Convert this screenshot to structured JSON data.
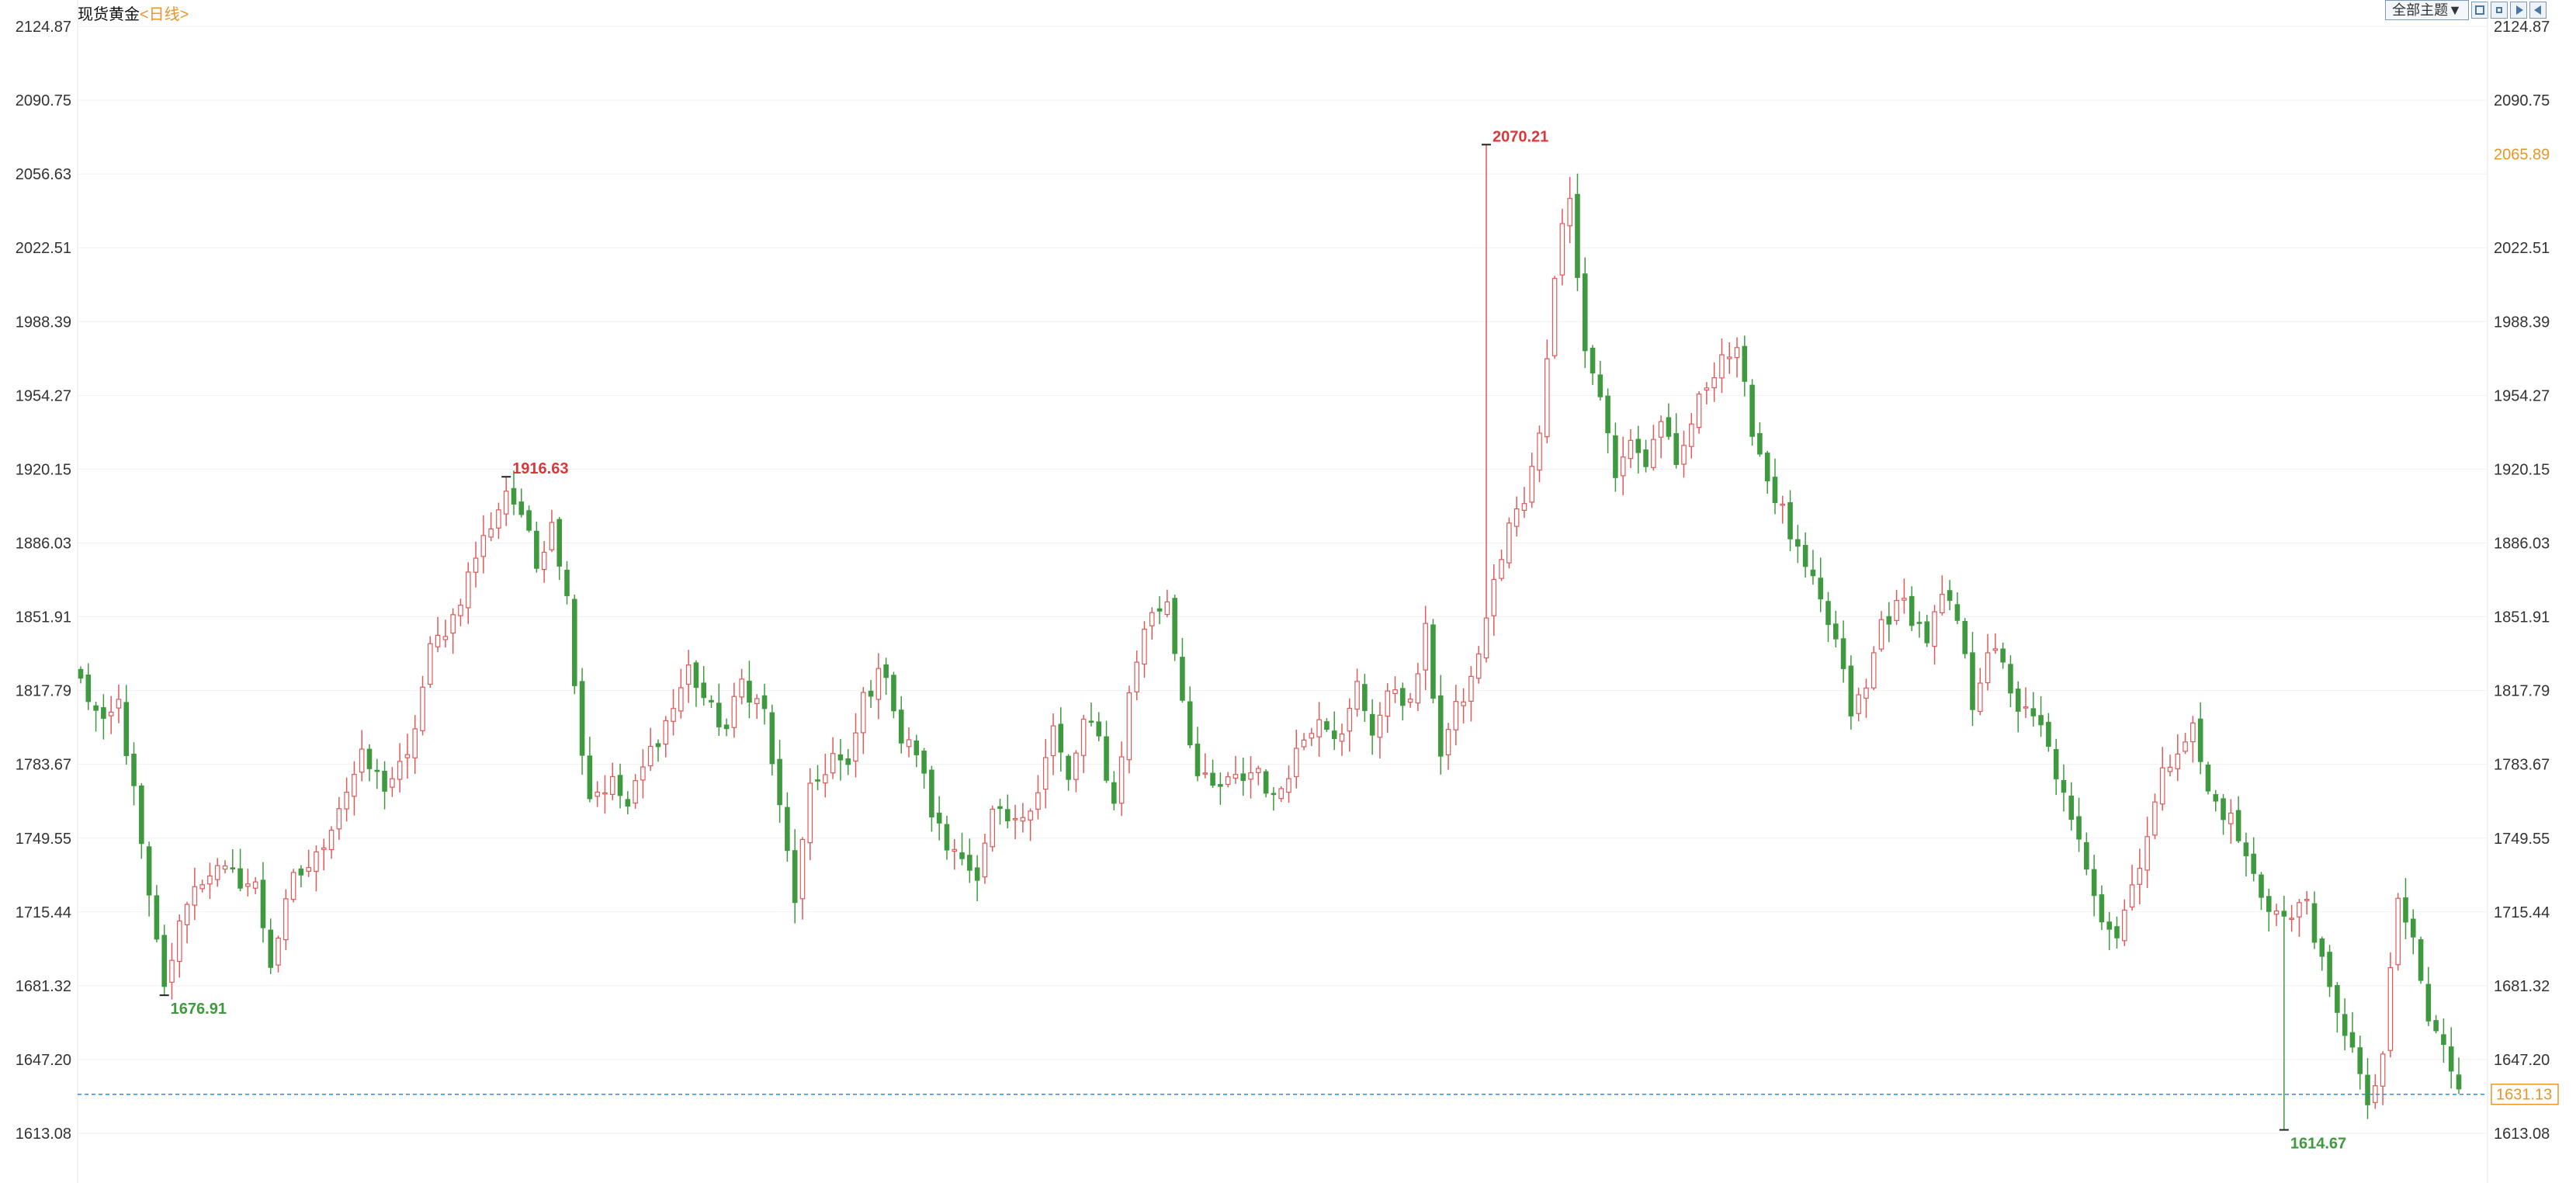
{
  "header": {
    "instrument": "现货黄金",
    "period": "<日线>",
    "theme_button": "全部主题▼"
  },
  "toolbar_icons": [
    "zoom-in-icon",
    "zoom-out-icon",
    "play-icon",
    "back-icon"
  ],
  "colors": {
    "up": "#e05a5a",
    "down": "#3f9a3f",
    "current_price": "#e8962a",
    "current_line": "#1e90ff",
    "high_marker": "#d9383a",
    "low_marker": "#3f9a3f"
  },
  "chart_data": {
    "type": "candlestick",
    "ylim": [
      1600.0,
      2130.0
    ],
    "y_ticks": [
      "2124.87",
      "2090.75",
      "2056.63",
      "2022.51",
      "1988.39",
      "1954.27",
      "1920.15",
      "1886.03",
      "1851.91",
      "1817.79",
      "1783.67",
      "1749.55",
      "1715.44",
      "1681.32",
      "1647.20",
      "1613.08"
    ],
    "current_price": "1631.13",
    "right_axis_marker": "2065.89",
    "annotations": [
      {
        "label": "1676.91",
        "value": 1676.91,
        "kind": "low",
        "index": 11
      },
      {
        "label": "1916.63",
        "value": 1916.63,
        "kind": "high",
        "index": 56
      },
      {
        "label": "2070.21",
        "value": 2070.21,
        "kind": "high",
        "index": 185
      },
      {
        "label": "1614.67",
        "value": 1614.67,
        "kind": "low",
        "index": 290
      }
    ],
    "anchors": [
      [
        0,
        1822
      ],
      [
        3,
        1800
      ],
      [
        5,
        1812
      ],
      [
        7,
        1770
      ],
      [
        9,
        1720
      ],
      [
        11,
        1681
      ],
      [
        14,
        1722
      ],
      [
        17,
        1735
      ],
      [
        20,
        1732
      ],
      [
        23,
        1727
      ],
      [
        25,
        1692
      ],
      [
        28,
        1730
      ],
      [
        31,
        1740
      ],
      [
        34,
        1765
      ],
      [
        37,
        1786
      ],
      [
        40,
        1774
      ],
      [
        43,
        1785
      ],
      [
        46,
        1836
      ],
      [
        49,
        1852
      ],
      [
        52,
        1880
      ],
      [
        56,
        1910
      ],
      [
        58,
        1900
      ],
      [
        60,
        1875
      ],
      [
        62,
        1898
      ],
      [
        64,
        1860
      ],
      [
        66,
        1790
      ],
      [
        67,
        1770
      ],
      [
        70,
        1775
      ],
      [
        72,
        1764
      ],
      [
        75,
        1790
      ],
      [
        78,
        1810
      ],
      [
        80,
        1828
      ],
      [
        83,
        1808
      ],
      [
        85,
        1800
      ],
      [
        87,
        1822
      ],
      [
        90,
        1808
      ],
      [
        92,
        1762
      ],
      [
        94,
        1722
      ],
      [
        96,
        1770
      ],
      [
        99,
        1788
      ],
      [
        101,
        1780
      ],
      [
        103,
        1815
      ],
      [
        106,
        1828
      ],
      [
        108,
        1794
      ],
      [
        110,
        1790
      ],
      [
        112,
        1762
      ],
      [
        114,
        1745
      ],
      [
        116,
        1745
      ],
      [
        118,
        1728
      ],
      [
        120,
        1760
      ],
      [
        123,
        1755
      ],
      [
        126,
        1773
      ],
      [
        128,
        1800
      ],
      [
        130,
        1775
      ],
      [
        132,
        1803
      ],
      [
        134,
        1795
      ],
      [
        136,
        1765
      ],
      [
        138,
        1815
      ],
      [
        140,
        1848
      ],
      [
        143,
        1860
      ],
      [
        145,
        1815
      ],
      [
        147,
        1778
      ],
      [
        149,
        1772
      ],
      [
        152,
        1776
      ],
      [
        155,
        1782
      ],
      [
        157,
        1766
      ],
      [
        160,
        1790
      ],
      [
        163,
        1808
      ],
      [
        166,
        1795
      ],
      [
        168,
        1820
      ],
      [
        170,
        1800
      ],
      [
        173,
        1820
      ],
      [
        175,
        1810
      ],
      [
        177,
        1844
      ],
      [
        179,
        1790
      ],
      [
        181,
        1808
      ],
      [
        183,
        1822
      ],
      [
        186,
        1866
      ],
      [
        188,
        1895
      ],
      [
        190,
        1904
      ],
      [
        192,
        1935
      ],
      [
        194,
        2012
      ],
      [
        196,
        2050
      ],
      [
        198,
        1975
      ],
      [
        200,
        1955
      ],
      [
        202,
        1915
      ],
      [
        204,
        1935
      ],
      [
        206,
        1922
      ],
      [
        208,
        1944
      ],
      [
        210,
        1918
      ],
      [
        212,
        1942
      ],
      [
        214,
        1960
      ],
      [
        216,
        1974
      ],
      [
        218,
        1972
      ],
      [
        220,
        1940
      ],
      [
        222,
        1916
      ],
      [
        224,
        1900
      ],
      [
        226,
        1880
      ],
      [
        228,
        1866
      ],
      [
        231,
        1840
      ],
      [
        233,
        1808
      ],
      [
        235,
        1818
      ],
      [
        237,
        1850
      ],
      [
        240,
        1858
      ],
      [
        243,
        1842
      ],
      [
        245,
        1860
      ],
      [
        247,
        1850
      ],
      [
        249,
        1812
      ],
      [
        251,
        1838
      ],
      [
        253,
        1828
      ],
      [
        255,
        1810
      ],
      [
        258,
        1800
      ],
      [
        260,
        1780
      ],
      [
        262,
        1755
      ],
      [
        264,
        1738
      ],
      [
        266,
        1715
      ],
      [
        268,
        1705
      ],
      [
        270,
        1728
      ],
      [
        272,
        1752
      ],
      [
        274,
        1778
      ],
      [
        276,
        1793
      ],
      [
        278,
        1800
      ],
      [
        280,
        1770
      ],
      [
        283,
        1758
      ],
      [
        285,
        1740
      ],
      [
        287,
        1724
      ],
      [
        289,
        1715
      ],
      [
        291,
        1712
      ],
      [
        293,
        1722
      ],
      [
        295,
        1690
      ],
      [
        297,
        1666
      ],
      [
        299,
        1656
      ],
      [
        301,
        1622
      ],
      [
        303,
        1650
      ],
      [
        305,
        1720
      ],
      [
        307,
        1702
      ],
      [
        309,
        1665
      ],
      [
        311,
        1652
      ],
      [
        313,
        1636
      ]
    ]
  }
}
